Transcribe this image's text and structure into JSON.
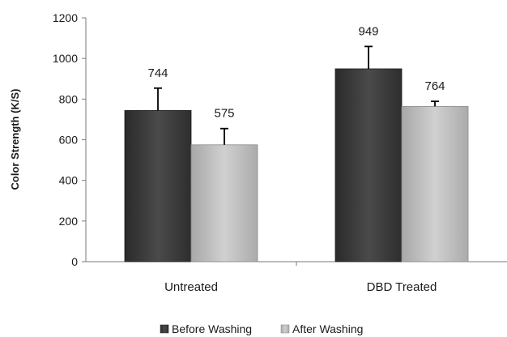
{
  "chart_data": {
    "type": "bar",
    "title": "",
    "xlabel": "",
    "ylabel": "Color Strength (K/S)",
    "ylim": [
      0,
      1200
    ],
    "yticks": [
      0,
      200,
      400,
      600,
      800,
      1000,
      1200
    ],
    "categories": [
      "Untreated",
      "DBD Treated"
    ],
    "series": [
      {
        "name": "Before Washing",
        "values": [
          744,
          949
        ],
        "error": [
          110,
          110
        ],
        "color": "#3c3c3c"
      },
      {
        "name": "After Washing",
        "values": [
          575,
          764
        ],
        "error": [
          80,
          25
        ],
        "color": "#b8b8b8"
      }
    ],
    "data_labels": [
      "744",
      "575",
      "949",
      "764"
    ],
    "grid": false,
    "legend": "bottom"
  }
}
